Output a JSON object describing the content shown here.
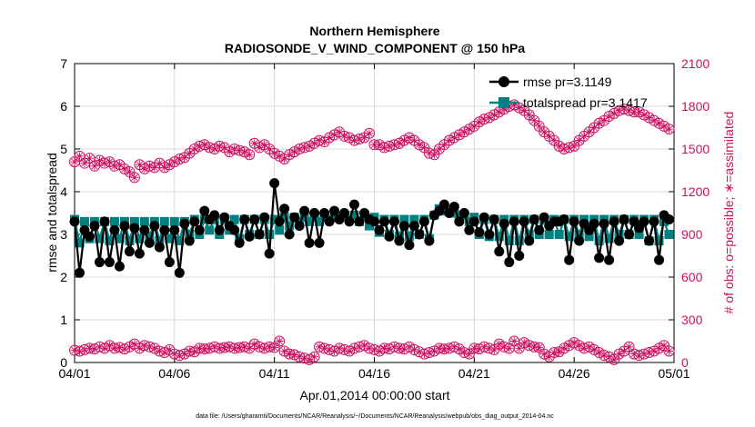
{
  "chart_data": {
    "type": "line",
    "title_line1": "Northern Hemisphere",
    "title_line2": "RADIOSONDE_V_WIND_COMPONENT @ 150 hPa",
    "xlabel": "Apr.01,2014 00:00:00 start",
    "ylabel_left": "rmse and totalspread",
    "ylabel_right": "# of obs: o=possible; ∗=assimilated",
    "footer": "data file: /Users/gharamti/Documents/NCAR/Reanalysis/~/Documents/NCAR/Reanalysis/webpub/obs_diag_output_2014-04.nc",
    "xlim": [
      0,
      30
    ],
    "ylim_left": [
      0,
      7
    ],
    "ylim_right": [
      0,
      2100
    ],
    "x_ticks": [
      {
        "v": 0,
        "label": "04/01"
      },
      {
        "v": 5,
        "label": "04/06"
      },
      {
        "v": 10,
        "label": "04/11"
      },
      {
        "v": 15,
        "label": "04/16"
      },
      {
        "v": 20,
        "label": "04/21"
      },
      {
        "v": 25,
        "label": "04/26"
      },
      {
        "v": 30,
        "label": "05/01"
      }
    ],
    "y_ticks_left": [
      {
        "v": 0,
        "label": "0"
      },
      {
        "v": 1,
        "label": "1"
      },
      {
        "v": 2,
        "label": "2"
      },
      {
        "v": 3,
        "label": "3"
      },
      {
        "v": 4,
        "label": "4"
      },
      {
        "v": 5,
        "label": "5"
      },
      {
        "v": 6,
        "label": "6"
      },
      {
        "v": 7,
        "label": "7"
      }
    ],
    "y_ticks_right": [
      {
        "v": 0,
        "label": "0"
      },
      {
        "v": 300,
        "label": "300"
      },
      {
        "v": 600,
        "label": "600"
      },
      {
        "v": 900,
        "label": "900"
      },
      {
        "v": 1200,
        "label": "1200"
      },
      {
        "v": 1500,
        "label": "1500"
      },
      {
        "v": 1800,
        "label": "1800"
      },
      {
        "v": 2100,
        "label": "2100"
      }
    ],
    "colors": {
      "rmse": "#000000",
      "totalspread": "#008080",
      "obs": "#cc1060",
      "grid": "#d8d8d8"
    },
    "legend": [
      {
        "name": "rmse pr=3.1149",
        "series": "rmse"
      },
      {
        "name": "totalspread pr=3.1417",
        "series": "totalspread"
      }
    ],
    "series": [
      {
        "name": "rmse",
        "axis": "left",
        "x": [
          0,
          0.25,
          0.5,
          0.75,
          1.0,
          1.25,
          1.5,
          1.75,
          2.0,
          2.25,
          2.5,
          2.75,
          3.0,
          3.25,
          3.5,
          3.75,
          4.0,
          4.25,
          4.5,
          4.75,
          5.0,
          5.25,
          5.5,
          5.75,
          6.0,
          6.25,
          6.5,
          6.75,
          7.0,
          7.25,
          7.5,
          7.75,
          8.0,
          8.25,
          8.5,
          8.75,
          9.0,
          9.25,
          9.5,
          9.75,
          10.0,
          10.25,
          10.5,
          10.75,
          11.0,
          11.25,
          11.5,
          11.75,
          12.0,
          12.25,
          12.5,
          12.75,
          13.0,
          13.25,
          13.5,
          13.75,
          14.0,
          14.25,
          14.5,
          14.75,
          15.0,
          15.25,
          15.5,
          15.75,
          16.0,
          16.25,
          16.5,
          16.75,
          17.0,
          17.25,
          17.5,
          17.75,
          18.0,
          18.25,
          18.5,
          18.75,
          19.0,
          19.25,
          19.5,
          19.75,
          20.0,
          20.25,
          20.5,
          20.75,
          21.0,
          21.25,
          21.5,
          21.75,
          22.0,
          22.25,
          22.5,
          22.75,
          23.0,
          23.25,
          23.5,
          23.75,
          24.0,
          24.25,
          24.5,
          24.75,
          25.0,
          25.25,
          25.5,
          25.75,
          26.0,
          26.25,
          26.5,
          26.75,
          27.0,
          27.25,
          27.5,
          27.75,
          28.0,
          28.25,
          28.5,
          28.75,
          29.0,
          29.25,
          29.5,
          29.75
        ],
        "values": [
          3.3,
          2.1,
          3.1,
          2.95,
          3.2,
          2.35,
          3.3,
          2.35,
          3.1,
          2.25,
          3.2,
          2.6,
          3.15,
          2.55,
          3.1,
          2.8,
          3.2,
          2.7,
          3.1,
          2.35,
          3.1,
          2.1,
          3.25,
          2.85,
          3.3,
          3.1,
          3.55,
          3.35,
          3.45,
          3.1,
          3.4,
          3.2,
          3.1,
          2.8,
          3.35,
          2.95,
          3.35,
          3.0,
          3.4,
          2.55,
          4.2,
          3.3,
          3.6,
          3.0,
          3.4,
          3.2,
          3.55,
          2.8,
          3.5,
          2.8,
          3.5,
          3.3,
          3.55,
          3.35,
          3.5,
          3.3,
          3.7,
          3.3,
          3.5,
          3.35,
          3.3,
          3.1,
          3.3,
          2.95,
          3.3,
          2.85,
          3.2,
          2.75,
          3.2,
          3.0,
          3.3,
          2.85,
          3.45,
          3.55,
          3.7,
          3.5,
          3.65,
          3.3,
          3.5,
          3.1,
          3.3,
          3.05,
          3.4,
          3.0,
          3.35,
          2.6,
          3.25,
          2.35,
          3.3,
          2.5,
          3.3,
          2.85,
          3.35,
          3.1,
          3.4,
          3.2,
          3.3,
          3.3,
          3.35,
          2.4,
          3.3,
          2.85,
          3.25,
          3.1,
          3.25,
          2.45,
          3.25,
          2.4,
          3.3,
          2.85,
          3.35,
          3.0,
          3.3,
          3.15,
          3.3,
          2.85,
          3.3,
          2.4,
          3.45,
          3.35
        ]
      },
      {
        "name": "totalspread",
        "axis": "left",
        "x": [
          0,
          0.25,
          0.5,
          0.75,
          1.0,
          1.25,
          1.5,
          1.75,
          2.0,
          2.25,
          2.5,
          2.75,
          3.0,
          3.25,
          3.5,
          3.75,
          4.0,
          4.25,
          4.5,
          4.75,
          5.0,
          5.25,
          5.5,
          5.75,
          6.0,
          6.25,
          6.5,
          6.75,
          7.0,
          7.25,
          7.5,
          7.75,
          8.0,
          8.25,
          8.5,
          8.75,
          9.0,
          9.25,
          9.5,
          9.75,
          10.0,
          10.25,
          10.5,
          10.75,
          11.0,
          11.25,
          11.5,
          11.75,
          12.0,
          12.25,
          12.5,
          12.75,
          13.0,
          13.25,
          13.5,
          13.75,
          14.0,
          14.25,
          14.5,
          14.75,
          15.0,
          15.25,
          15.5,
          15.75,
          16.0,
          16.25,
          16.5,
          16.75,
          17.0,
          17.25,
          17.5,
          17.75,
          18.0,
          18.25,
          18.5,
          18.75,
          19.0,
          19.25,
          19.5,
          19.75,
          20.0,
          20.25,
          20.5,
          20.75,
          21.0,
          21.25,
          21.5,
          21.75,
          22.0,
          22.25,
          22.5,
          22.75,
          23.0,
          23.25,
          23.5,
          23.75,
          24.0,
          24.25,
          24.5,
          24.75,
          25.0,
          25.25,
          25.5,
          25.75,
          26.0,
          26.25,
          26.5,
          26.75,
          27.0,
          27.25,
          27.5,
          27.75,
          28.0,
          28.25,
          28.5,
          28.75,
          29.0,
          29.25,
          29.5,
          29.75
        ],
        "values": [
          3.35,
          2.8,
          3.3,
          2.9,
          3.3,
          2.9,
          3.3,
          2.85,
          3.3,
          2.9,
          3.3,
          2.85,
          3.3,
          2.9,
          3.3,
          2.95,
          3.3,
          2.85,
          3.3,
          2.9,
          3.3,
          2.85,
          3.3,
          3.0,
          3.35,
          3.0,
          3.35,
          3.1,
          3.35,
          3.0,
          3.35,
          3.1,
          3.35,
          2.9,
          3.35,
          3.0,
          3.35,
          3.0,
          3.35,
          3.0,
          3.35,
          3.1,
          3.4,
          3.2,
          3.4,
          3.3,
          3.4,
          3.3,
          3.4,
          3.3,
          3.4,
          3.35,
          3.4,
          3.4,
          3.45,
          3.35,
          3.45,
          3.3,
          3.45,
          3.2,
          3.4,
          3.05,
          3.35,
          3.0,
          3.35,
          2.95,
          3.35,
          2.95,
          3.35,
          3.0,
          3.35,
          2.9,
          3.45,
          3.6,
          3.55,
          3.55,
          3.5,
          3.45,
          3.45,
          3.3,
          3.4,
          3.0,
          3.35,
          2.95,
          3.35,
          2.95,
          3.35,
          2.85,
          3.35,
          2.85,
          3.35,
          3.0,
          3.35,
          3.0,
          3.35,
          3.0,
          3.35,
          3.0,
          3.35,
          2.95,
          3.35,
          3.0,
          3.35,
          2.95,
          3.35,
          2.85,
          3.35,
          2.9,
          3.35,
          3.0,
          3.35,
          3.0,
          3.35,
          3.0,
          3.35,
          2.85,
          3.35,
          2.85,
          3.3,
          3.0
        ]
      },
      {
        "name": "possible obs",
        "axis": "right",
        "x": [
          0,
          0.25,
          0.5,
          0.75,
          1.0,
          1.25,
          1.5,
          1.75,
          2.0,
          2.25,
          2.5,
          2.75,
          3.0,
          3.25,
          3.5,
          3.75,
          4.0,
          4.25,
          4.5,
          4.75,
          5.0,
          5.25,
          5.5,
          5.75,
          6.0,
          6.25,
          6.5,
          6.75,
          7.0,
          7.25,
          7.5,
          7.75,
          8.0,
          8.25,
          8.5,
          8.75,
          9.0,
          9.25,
          9.5,
          9.75,
          10.0,
          10.25,
          10.5,
          10.75,
          11.0,
          11.25,
          11.5,
          11.75,
          12.0,
          12.25,
          12.5,
          12.75,
          13.0,
          13.25,
          13.5,
          13.75,
          14.0,
          14.25,
          14.5,
          14.75,
          15.0,
          15.25,
          15.5,
          15.75,
          16.0,
          16.25,
          16.5,
          16.75,
          17.0,
          17.25,
          17.5,
          17.75,
          18.0,
          18.25,
          18.5,
          18.75,
          19.0,
          19.25,
          19.5,
          19.75,
          20.0,
          20.25,
          20.5,
          20.75,
          21.0,
          21.25,
          21.5,
          21.75,
          22.0,
          22.25,
          22.5,
          22.75,
          23.0,
          23.25,
          23.5,
          23.75,
          24.0,
          24.25,
          24.5,
          24.75,
          25.0,
          25.25,
          25.5,
          25.75,
          26.0,
          26.25,
          26.5,
          26.75,
          27.0,
          27.25,
          27.5,
          27.75,
          28.0,
          28.25,
          28.5,
          28.75,
          29.0,
          29.25,
          29.5,
          29.75
        ],
        "values": [
          1410,
          1450,
          1400,
          1435,
          1380,
          1420,
          1400,
          1410,
          1380,
          1390,
          1360,
          1340,
          1300,
          1390,
          1360,
          1380,
          1370,
          1400,
          1370,
          1390,
          1410,
          1430,
          1440,
          1470,
          1500,
          1520,
          1530,
          1510,
          1500,
          1520,
          1510,
          1480,
          1500,
          1490,
          1480,
          1460,
          1540,
          1510,
          1530,
          1500,
          1470,
          1450,
          1430,
          1460,
          1480,
          1500,
          1510,
          1520,
          1540,
          1560,
          1550,
          1580,
          1600,
          1620,
          1590,
          1580,
          1560,
          1570,
          1580,
          1610,
          1530,
          1530,
          1510,
          1520,
          1530,
          1540,
          1560,
          1580,
          1560,
          1530,
          1510,
          1470,
          1460,
          1500,
          1530,
          1560,
          1580,
          1600,
          1620,
          1640,
          1660,
          1690,
          1710,
          1720,
          1740,
          1760,
          1780,
          1800,
          1810,
          1790,
          1770,
          1740,
          1700,
          1660,
          1620,
          1590,
          1560,
          1520,
          1500,
          1510,
          1520,
          1560,
          1590,
          1620,
          1650,
          1680,
          1700,
          1730,
          1750,
          1770,
          1780,
          1770,
          1760,
          1760,
          1740,
          1720,
          1700,
          1680,
          1660,
          1640
        ]
      },
      {
        "name": "assimilated obs",
        "axis": "right",
        "x": [
          0,
          0.25,
          0.5,
          0.75,
          1.0,
          1.25,
          1.5,
          1.75,
          2.0,
          2.25,
          2.5,
          2.75,
          3.0,
          3.25,
          3.5,
          3.75,
          4.0,
          4.25,
          4.5,
          4.75,
          5.0,
          5.25,
          5.5,
          5.75,
          6.0,
          6.25,
          6.5,
          6.75,
          7.0,
          7.25,
          7.5,
          7.75,
          8.0,
          8.25,
          8.5,
          8.75,
          9.0,
          9.25,
          9.5,
          9.75,
          10.0,
          10.25,
          10.5,
          10.75,
          11.0,
          11.25,
          11.5,
          11.75,
          12.0,
          12.25,
          12.5,
          12.75,
          13.0,
          13.25,
          13.5,
          13.75,
          14.0,
          14.25,
          14.5,
          14.75,
          15.0,
          15.25,
          15.5,
          15.75,
          16.0,
          16.25,
          16.5,
          16.75,
          17.0,
          17.25,
          17.5,
          17.75,
          18.0,
          18.25,
          18.5,
          18.75,
          19.0,
          19.25,
          19.5,
          19.75,
          20.0,
          20.25,
          20.5,
          20.75,
          21.0,
          21.25,
          21.5,
          21.75,
          22.0,
          22.25,
          22.5,
          22.75,
          23.0,
          23.25,
          23.5,
          23.75,
          24.0,
          24.25,
          24.5,
          24.75,
          25.0,
          25.25,
          25.5,
          25.75,
          26.0,
          26.25,
          26.5,
          26.75,
          27.0,
          27.25,
          27.5,
          27.75,
          28.0,
          28.25,
          28.5,
          28.75,
          29.0,
          29.25,
          29.5,
          29.75
        ],
        "values": [
          85,
          80,
          90,
          100,
          95,
          110,
          100,
          120,
          100,
          105,
          95,
          110,
          130,
          100,
          120,
          110,
          100,
          80,
          70,
          90,
          60,
          50,
          60,
          80,
          75,
          100,
          95,
          100,
          110,
          100,
          105,
          110,
          100,
          105,
          110,
          100,
          130,
          110,
          100,
          110,
          105,
          150,
          80,
          60,
          55,
          40,
          30,
          20,
          40,
          110,
          100,
          90,
          80,
          100,
          90,
          80,
          100,
          110,
          120,
          100,
          90,
          80,
          100,
          95,
          110,
          100,
          95,
          110,
          90,
          75,
          60,
          70,
          80,
          100,
          95,
          100,
          110,
          95,
          70,
          60,
          100,
          95,
          110,
          100,
          90,
          130,
          110,
          100,
          150,
          100,
          140,
          120,
          110,
          105,
          60,
          40,
          70,
          75,
          100,
          120,
          140,
          120,
          100,
          110,
          90,
          70,
          50,
          40,
          20,
          60,
          80,
          110,
          60,
          50,
          60,
          70,
          80,
          100,
          120,
          80
        ]
      }
    ]
  }
}
